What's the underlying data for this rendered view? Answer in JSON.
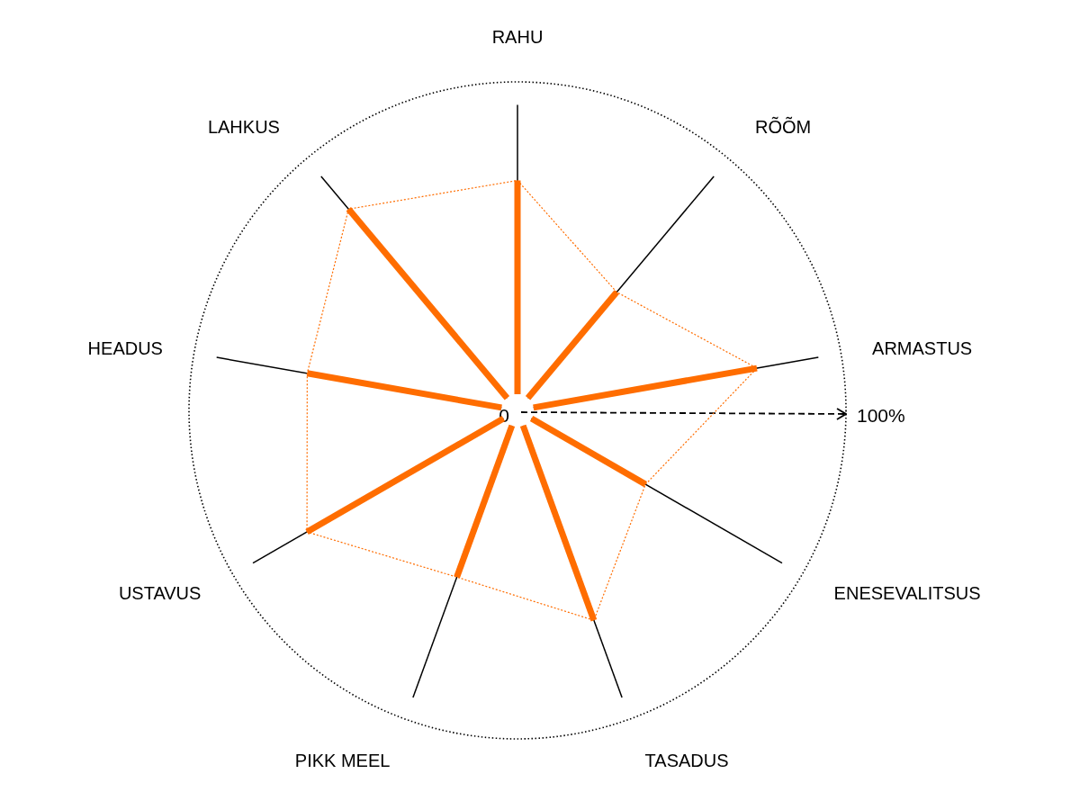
{
  "chart_data": {
    "type": "radar",
    "categories": [
      "RAHU",
      "RÕÕM",
      "ARMASTUS",
      "ENESEVALITSUS",
      "TASADUS",
      "PIKK MEEL",
      "USTAVUS",
      "HEADUS",
      "LAHKUS"
    ],
    "series": [
      {
        "color": "#ff6d00",
        "values": [
          70,
          47,
          74,
          45,
          68,
          54,
          74,
          65,
          80
        ]
      }
    ],
    "ylim": [
      0,
      100
    ],
    "yticks": [
      0,
      {
        "value": 100,
        "label": "100%"
      }
    ],
    "grid": true,
    "marker": "none",
    "line_style": "dotted"
  }
}
